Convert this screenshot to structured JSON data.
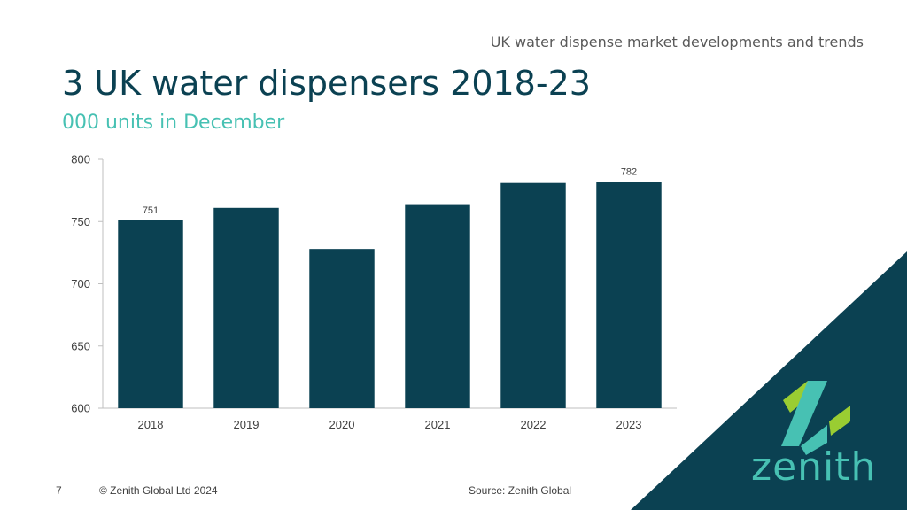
{
  "header": {
    "topic": "UK water dispense market developments and trends"
  },
  "title": "3 UK water dispensers 2018-23",
  "subtitle": "000 units in December",
  "footer": {
    "page_number": "7",
    "copyright": "© Zenith Global Ltd 2024",
    "source": "Source: Zenith Global"
  },
  "brand": {
    "logo_text": "zenith",
    "dark": "#0b4152",
    "light": "#47c1b3",
    "green": "#9acd32"
  },
  "chart_data": {
    "type": "bar",
    "categories": [
      "2018",
      "2019",
      "2020",
      "2021",
      "2022",
      "2023"
    ],
    "values": [
      751,
      761,
      728,
      764,
      781,
      782
    ],
    "data_labels": {
      "2018": "751",
      "2023": "782"
    },
    "ylim": [
      600,
      800
    ],
    "yticks": [
      600,
      650,
      700,
      750,
      800
    ],
    "xlabel": "",
    "ylabel": "",
    "bar_color": "#0b4152",
    "grid": false
  }
}
